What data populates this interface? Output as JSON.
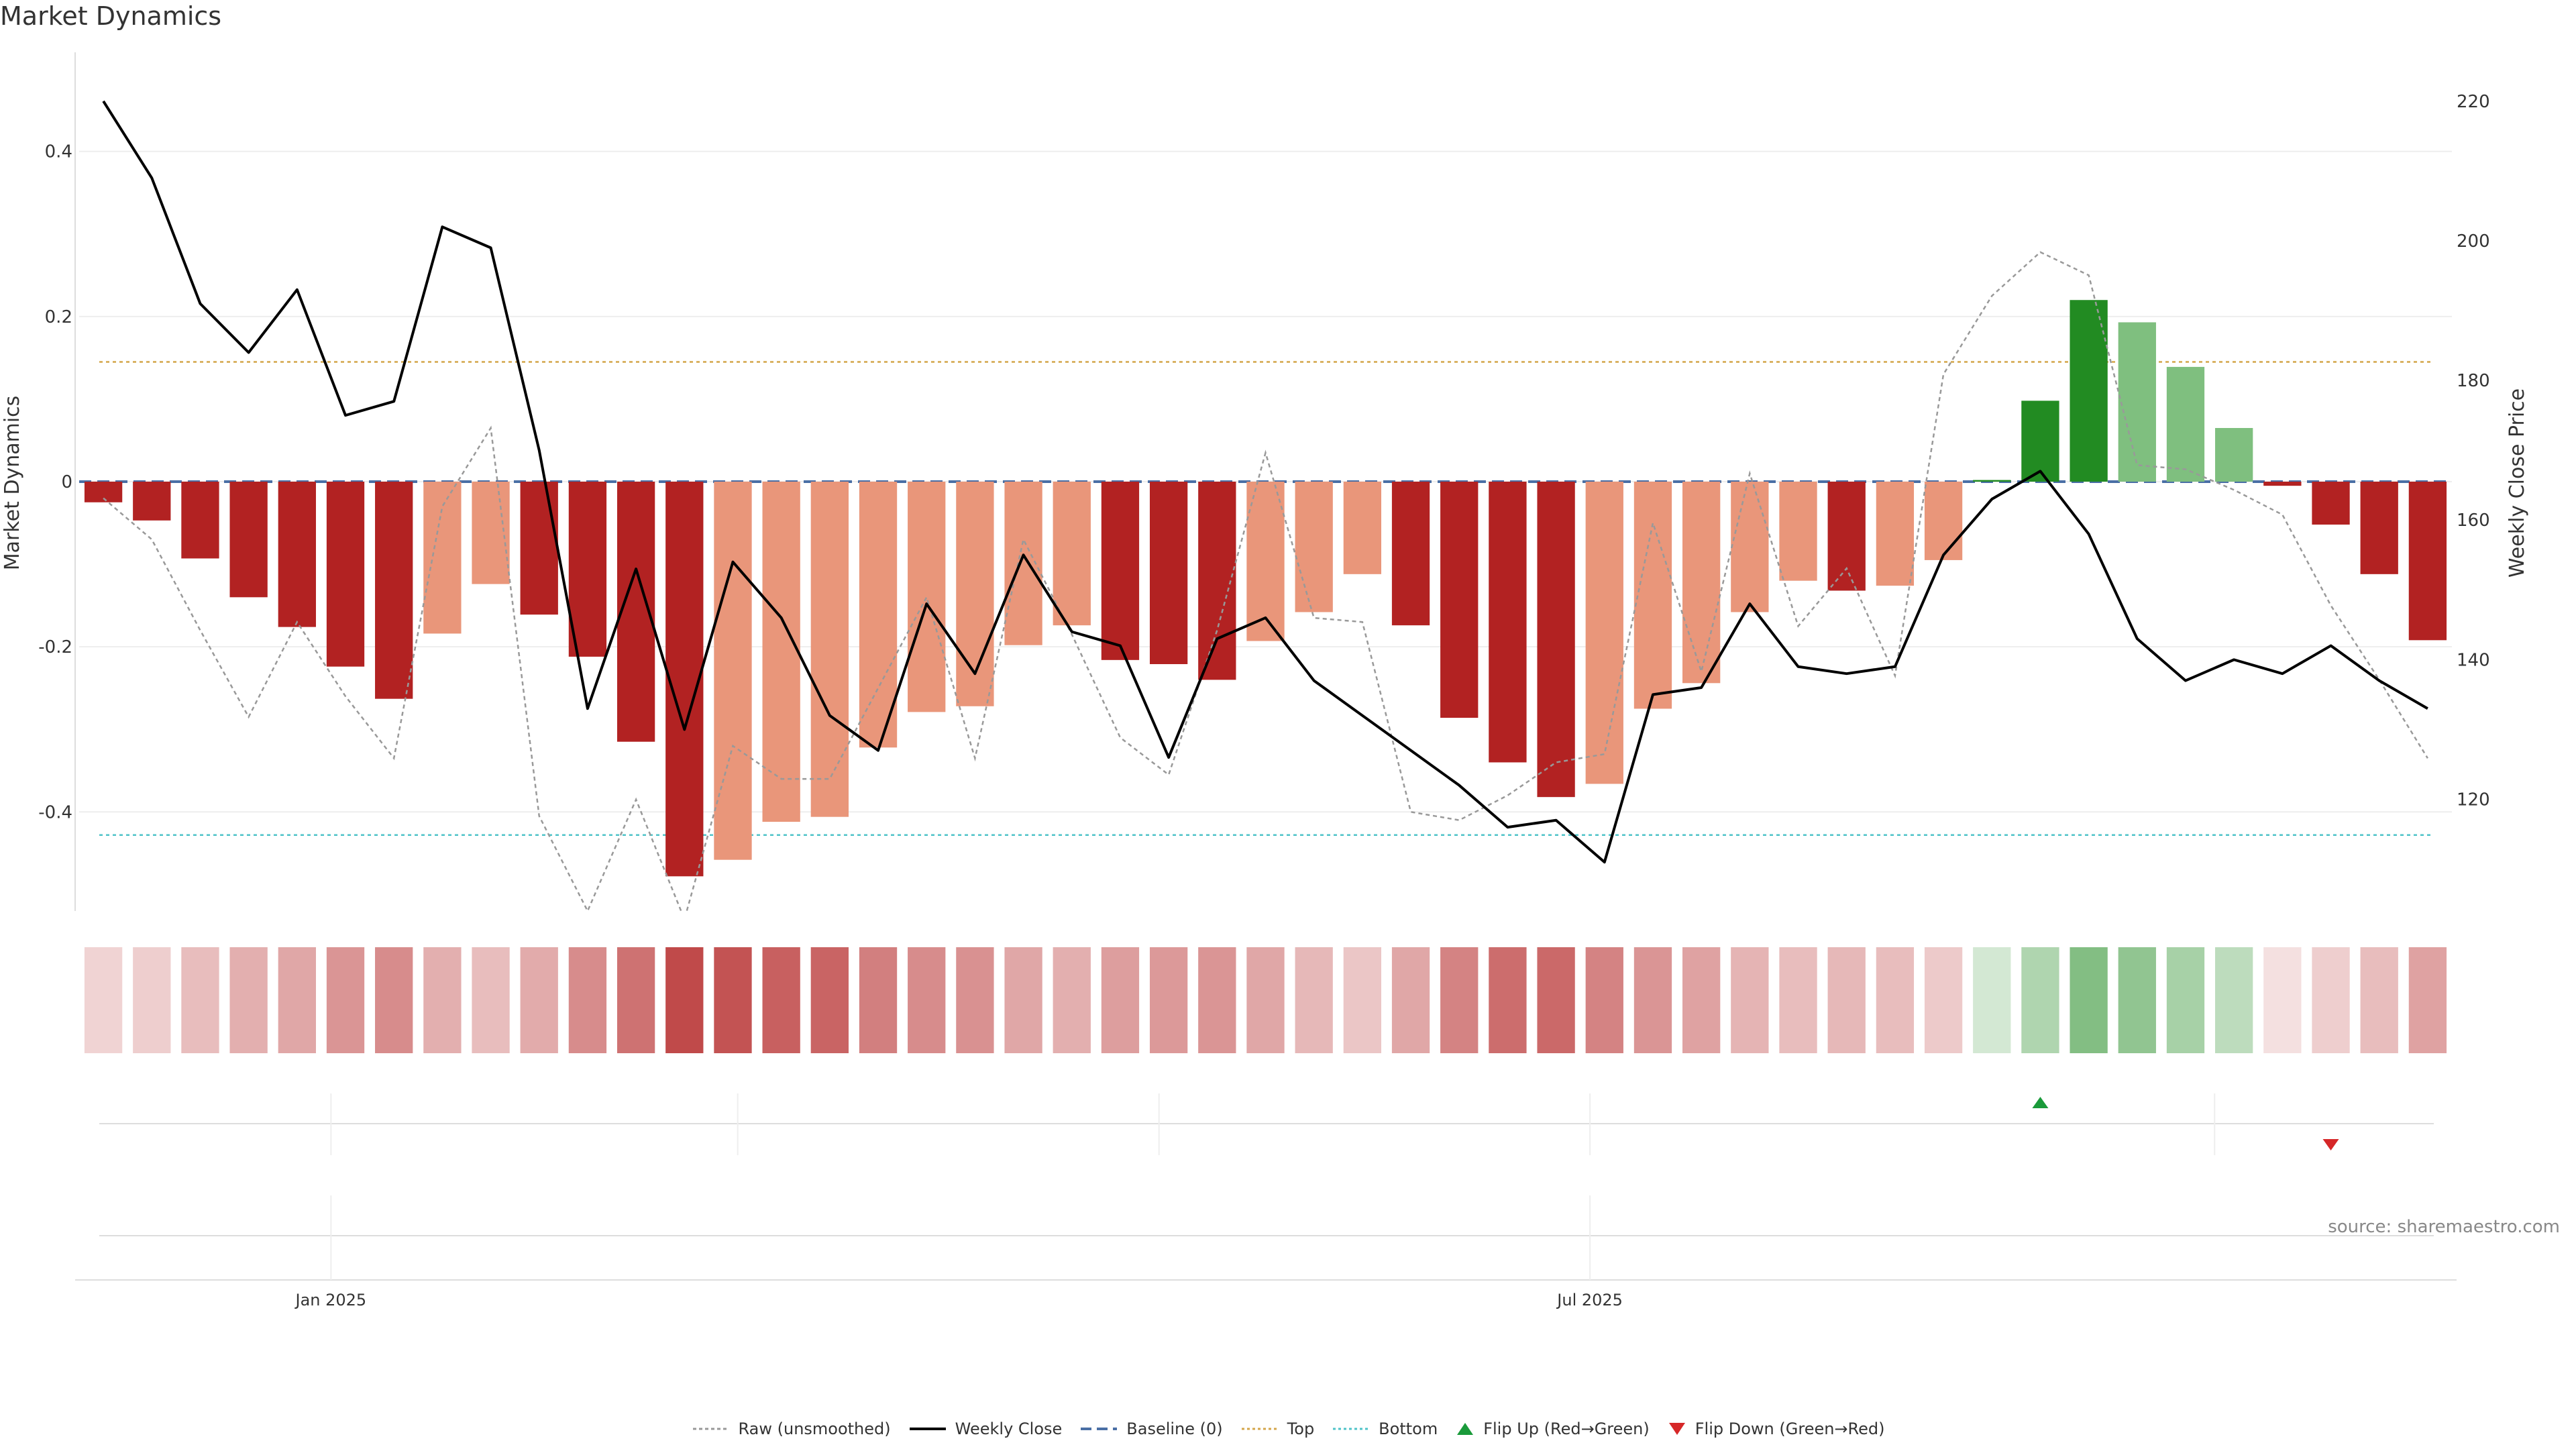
{
  "title": "Market Dynamics",
  "source": "source: sharemaestro.com",
  "colors": {
    "strong_red": "#b22222",
    "weak_red": "#e9967a",
    "strong_green": "#228b22",
    "weak_green": "#7fbf7f",
    "price": "#000000",
    "raw": "#999999",
    "baseline": "#4a6fa5",
    "top": "#d4a64a",
    "bottom": "#4fc3c8",
    "flip_up": "#1a9a3a",
    "flip_down": "#d62728"
  },
  "chart_data": {
    "type": "bar",
    "title": "Market Dynamics",
    "ylabel": "Market Dynamics",
    "y2label": "Weekly Close Price",
    "ylim": [
      -0.52,
      0.52
    ],
    "y2lim": [
      104,
      227
    ],
    "yticks": [
      -0.4,
      -0.2,
      0,
      0.2,
      0.4
    ],
    "ytick_labels": [
      "-0.4",
      "-0.2",
      "0",
      "0.2",
      "0.4"
    ],
    "y2ticks": [
      120,
      140,
      160,
      180,
      200,
      220
    ],
    "y2tick_labels": [
      "120",
      "140",
      "160",
      "180",
      "200",
      "220"
    ],
    "xtick_labels": [
      "Jan 2025",
      "Jul 2025"
    ],
    "xtick_positions": [
      4.7,
      30.7
    ],
    "minor_xtick_positions": [
      13.1,
      21.8,
      43.6
    ],
    "baseline": 0,
    "top_level": 0.145,
    "bottom_level": -0.428,
    "values": [
      -0.025,
      -0.047,
      -0.093,
      -0.14,
      -0.176,
      -0.224,
      -0.263,
      -0.184,
      -0.124,
      -0.161,
      -0.212,
      -0.315,
      -0.478,
      -0.458,
      -0.412,
      -0.406,
      -0.322,
      -0.279,
      -0.272,
      -0.198,
      -0.174,
      -0.216,
      -0.221,
      -0.24,
      -0.193,
      -0.158,
      -0.112,
      -0.174,
      -0.286,
      -0.34,
      -0.382,
      -0.366,
      -0.275,
      -0.244,
      -0.158,
      -0.12,
      -0.132,
      -0.126,
      -0.095,
      0.002,
      0.098,
      0.22,
      0.193,
      0.139,
      0.065,
      -0.005,
      -0.052,
      -0.112,
      -0.192
    ],
    "strength": [
      "strong",
      "strong",
      "strong",
      "strong",
      "strong",
      "strong",
      "strong",
      "weak",
      "weak",
      "strong",
      "strong",
      "strong",
      "strong",
      "weak",
      "weak",
      "weak",
      "weak",
      "weak",
      "weak",
      "weak",
      "weak",
      "strong",
      "strong",
      "strong",
      "weak",
      "weak",
      "weak",
      "strong",
      "strong",
      "strong",
      "strong",
      "weak",
      "weak",
      "weak",
      "weak",
      "weak",
      "strong",
      "weak",
      "weak",
      "strong",
      "strong",
      "strong",
      "weak",
      "weak",
      "weak",
      "strong",
      "strong",
      "strong",
      "strong"
    ],
    "raw": [
      -0.02,
      -0.07,
      -0.18,
      -0.285,
      -0.17,
      -0.26,
      -0.335,
      -0.03,
      0.065,
      -0.405,
      -0.52,
      -0.385,
      -0.53,
      -0.32,
      -0.36,
      -0.36,
      -0.25,
      -0.14,
      -0.335,
      -0.07,
      -0.185,
      -0.31,
      -0.355,
      -0.18,
      0.035,
      -0.165,
      -0.17,
      -0.4,
      -0.41,
      -0.38,
      -0.34,
      -0.33,
      -0.05,
      -0.23,
      0.01,
      -0.175,
      -0.105,
      -0.235,
      0.13,
      0.225,
      0.278,
      0.25,
      0.02,
      0.015,
      -0.01,
      -0.04,
      -0.15,
      -0.24,
      -0.335
    ],
    "weekly_close": [
      220,
      209,
      191,
      184,
      193,
      175,
      177,
      202,
      199,
      170,
      133,
      153,
      130,
      154,
      146,
      132,
      127,
      148,
      138,
      155,
      144,
      142,
      126,
      143,
      146,
      137,
      132,
      127,
      122,
      116,
      117,
      111,
      135,
      136,
      148,
      139,
      138,
      139,
      155,
      163,
      167,
      158,
      143,
      137,
      140,
      138,
      142,
      137,
      133
    ],
    "heat": [
      -0.2,
      -0.22,
      -0.3,
      -0.36,
      -0.4,
      -0.48,
      -0.52,
      -0.36,
      -0.3,
      -0.38,
      -0.52,
      -0.64,
      -0.82,
      -0.78,
      -0.72,
      -0.7,
      -0.58,
      -0.52,
      -0.5,
      -0.4,
      -0.36,
      -0.44,
      -0.46,
      -0.48,
      -0.4,
      -0.32,
      -0.26,
      -0.4,
      -0.56,
      -0.66,
      -0.68,
      -0.56,
      -0.48,
      -0.42,
      -0.34,
      -0.3,
      -0.32,
      -0.3,
      -0.24,
      0.2,
      0.36,
      0.56,
      0.5,
      0.4,
      0.3,
      -0.14,
      -0.22,
      -0.3,
      -0.42
    ],
    "flip_up_index": 40,
    "flip_down_index": 46
  },
  "legend": [
    {
      "key": "raw",
      "label": "Raw (unsmoothed)"
    },
    {
      "key": "price",
      "label": "Weekly Close"
    },
    {
      "key": "baseline",
      "label": "Baseline (0)"
    },
    {
      "key": "top",
      "label": "Top"
    },
    {
      "key": "bottom",
      "label": "Bottom"
    },
    {
      "key": "flip_up",
      "label": "Flip Up (Red→Green)"
    },
    {
      "key": "flip_down",
      "label": "Flip Down (Green→Red)"
    }
  ]
}
